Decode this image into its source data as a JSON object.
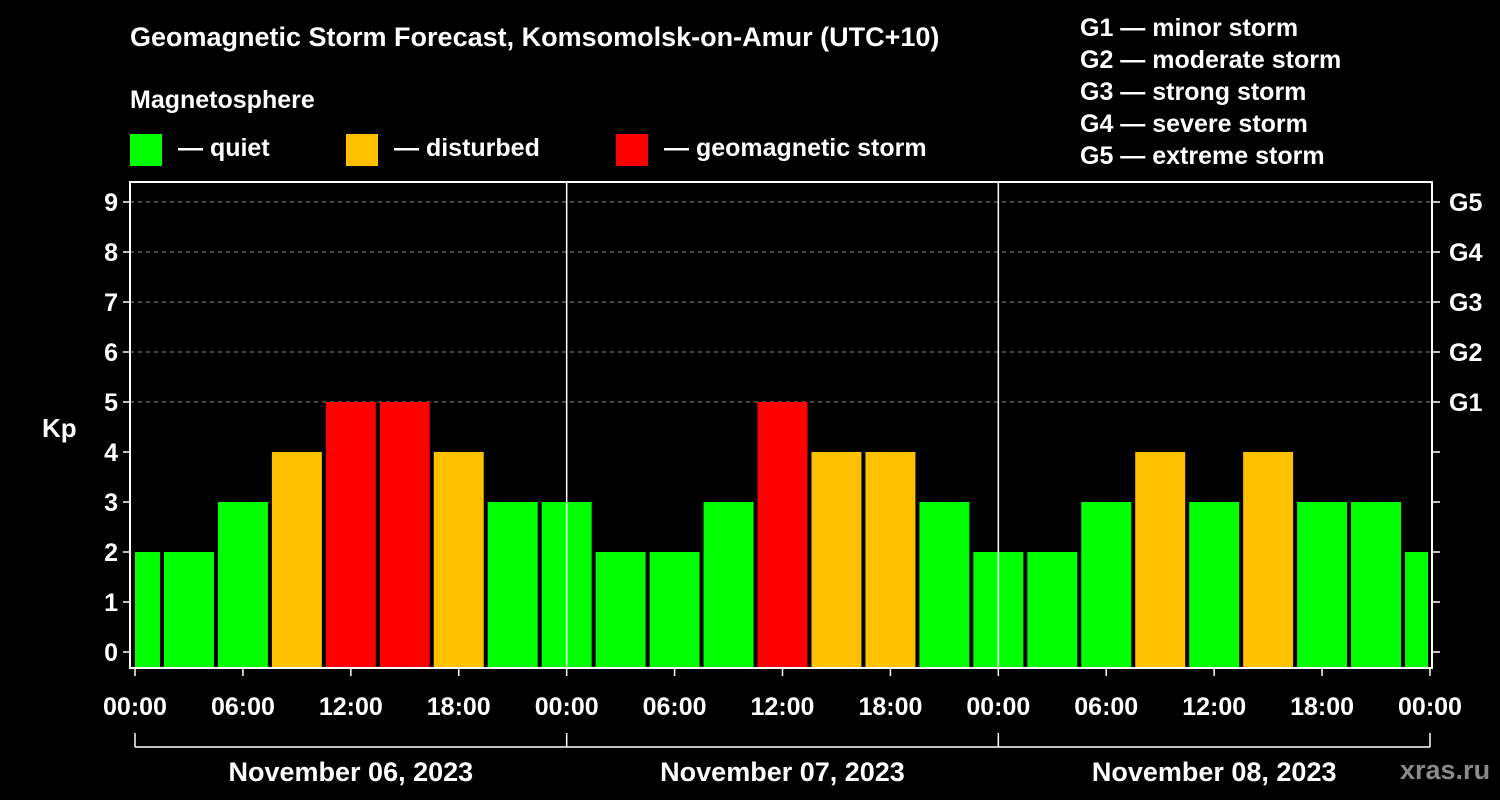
{
  "chart_data": {
    "type": "bar",
    "title": "Geomagnetic Storm Forecast, Komsomolsk-on-Amur (UTC+10)",
    "subtitle": "Magnetosphere",
    "ylabel": "Kp",
    "ylim": [
      0,
      9
    ],
    "y_ticks": [
      "0",
      "1",
      "2",
      "3",
      "4",
      "5",
      "6",
      "7",
      "8",
      "9"
    ],
    "right_ticks": [
      {
        "kp": 5,
        "label": "G1"
      },
      {
        "kp": 6,
        "label": "G2"
      },
      {
        "kp": 7,
        "label": "G3"
      },
      {
        "kp": 8,
        "label": "G4"
      },
      {
        "kp": 9,
        "label": "G5"
      }
    ],
    "x_tick_labels": [
      "00:00",
      "06:00",
      "12:00",
      "18:00",
      "00:00",
      "06:00",
      "12:00",
      "18:00",
      "00:00",
      "06:00",
      "12:00",
      "18:00",
      "00:00"
    ],
    "days": [
      "November 06, 2023",
      "November 07, 2023",
      "November 08, 2023"
    ],
    "values": [
      2,
      2,
      3,
      4,
      5,
      5,
      4,
      3,
      3,
      2,
      2,
      3,
      5,
      4,
      4,
      3,
      2,
      2,
      3,
      4,
      3,
      4,
      3,
      3,
      2
    ],
    "bar_start_hour": -1.5,
    "bar_step_hours": 3,
    "hours_span": 72,
    "legend": [
      {
        "label": "— quiet",
        "color": "#00ff00"
      },
      {
        "label": "— disturbed",
        "color": "#ffc000"
      },
      {
        "label": "— geomagnetic storm",
        "color": "#ff0000"
      }
    ],
    "g_scale": [
      "G1 — minor storm",
      "G2 — moderate storm",
      "G3 — strong storm",
      "G4 — severe storm",
      "G5 — extreme storm"
    ],
    "colors": {
      "quiet": "#00ff00",
      "disturbed": "#ffc000",
      "storm": "#ff0000"
    }
  },
  "watermark": "xras.ru"
}
